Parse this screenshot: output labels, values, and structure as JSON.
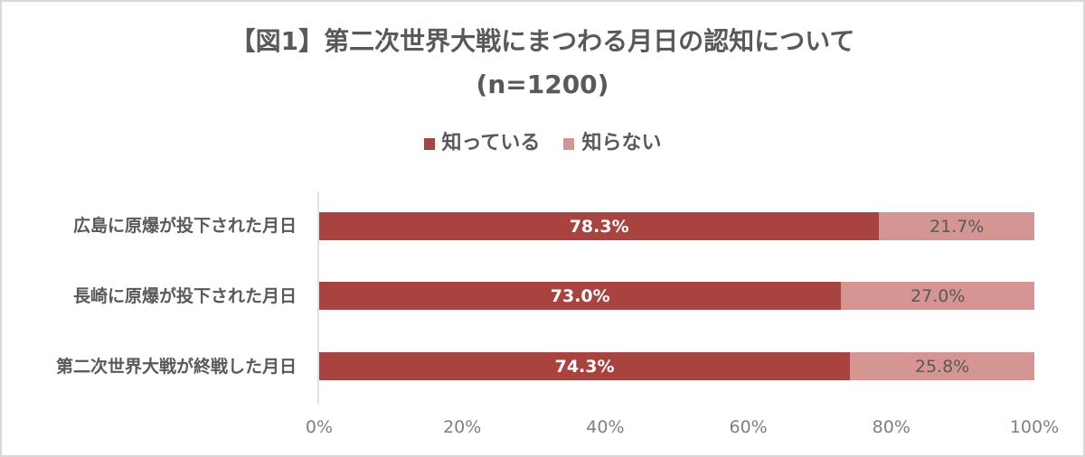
{
  "chart": {
    "title_line1": "【図1】第二次世界大戦にまつわる月日の認知について",
    "title_line2": "(n=1200)",
    "legend": [
      {
        "label": "知っている",
        "color": "#a8433f"
      },
      {
        "label": "知らない",
        "color": "#d59593"
      }
    ],
    "rows": [
      {
        "label": "広島に原爆が投下された月日",
        "known": "78.3%",
        "unknown": "21.7%"
      },
      {
        "label": "長崎に原爆が投下された月日",
        "known": "73.0%",
        "unknown": "27.0%"
      },
      {
        "label": "第二次世界大戦が終戦した月日",
        "known": "74.3%",
        "unknown": "25.8%"
      }
    ],
    "ticks": [
      "0%",
      "20%",
      "40%",
      "60%",
      "80%",
      "100%"
    ]
  },
  "chart_data": {
    "type": "bar",
    "orientation": "horizontal",
    "stacked": true,
    "title": "【図1】第二次世界大戦にまつわる月日の認知について (n=1200)",
    "categories": [
      "広島に原爆が投下された月日",
      "長崎に原爆が投下された月日",
      "第二次世界大戦が終戦した月日"
    ],
    "series": [
      {
        "name": "知っている",
        "values": [
          78.3,
          73.0,
          74.3
        ],
        "color": "#a8433f"
      },
      {
        "name": "知らない",
        "values": [
          21.7,
          27.0,
          25.8
        ],
        "color": "#d59593"
      }
    ],
    "xlabel": "",
    "ylabel": "",
    "xlim": [
      0,
      100
    ],
    "x_ticks": [
      "0%",
      "20%",
      "40%",
      "60%",
      "80%",
      "100%"
    ],
    "legend_position": "top",
    "grid": false,
    "data_labels": true
  }
}
